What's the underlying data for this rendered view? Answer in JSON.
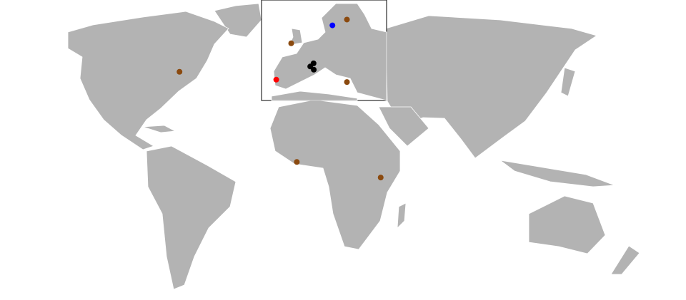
{
  "map": {
    "land_color": "#b3b3b3",
    "border_color": "#ffffff",
    "background": "#ffffff",
    "inset_region": "Europe",
    "markers": [
      {
        "color": "#8b4a0f",
        "lon": -73.6,
        "lat": 45.5,
        "view": "world"
      },
      {
        "color": "#8b4a0f",
        "lon": -0.2,
        "lat": 5.6,
        "view": "world"
      },
      {
        "color": "#8b4a0f",
        "lon": 36.8,
        "lat": -1.3,
        "view": "world"
      },
      {
        "color": "#0000ff",
        "lon": 18.0,
        "lat": 59.3,
        "view": "inset"
      },
      {
        "color": "#8b4a0f",
        "lon": 25.0,
        "lat": 61.5,
        "view": "inset"
      },
      {
        "color": "#8b4a0f",
        "lon": -1.9,
        "lat": 52.5,
        "view": "inset"
      },
      {
        "color": "#ff0000",
        "lon": -9.1,
        "lat": 38.7,
        "view": "inset"
      },
      {
        "color": "#000000",
        "lon": 7.3,
        "lat": 43.7,
        "view": "inset"
      },
      {
        "color": "#000000",
        "lon": 8.9,
        "lat": 44.9,
        "view": "inset"
      },
      {
        "color": "#000000",
        "lon": 9.0,
        "lat": 42.5,
        "view": "inset"
      },
      {
        "color": "#8b4a0f",
        "lon": 25.0,
        "lat": 37.8,
        "view": "inset"
      }
    ]
  }
}
